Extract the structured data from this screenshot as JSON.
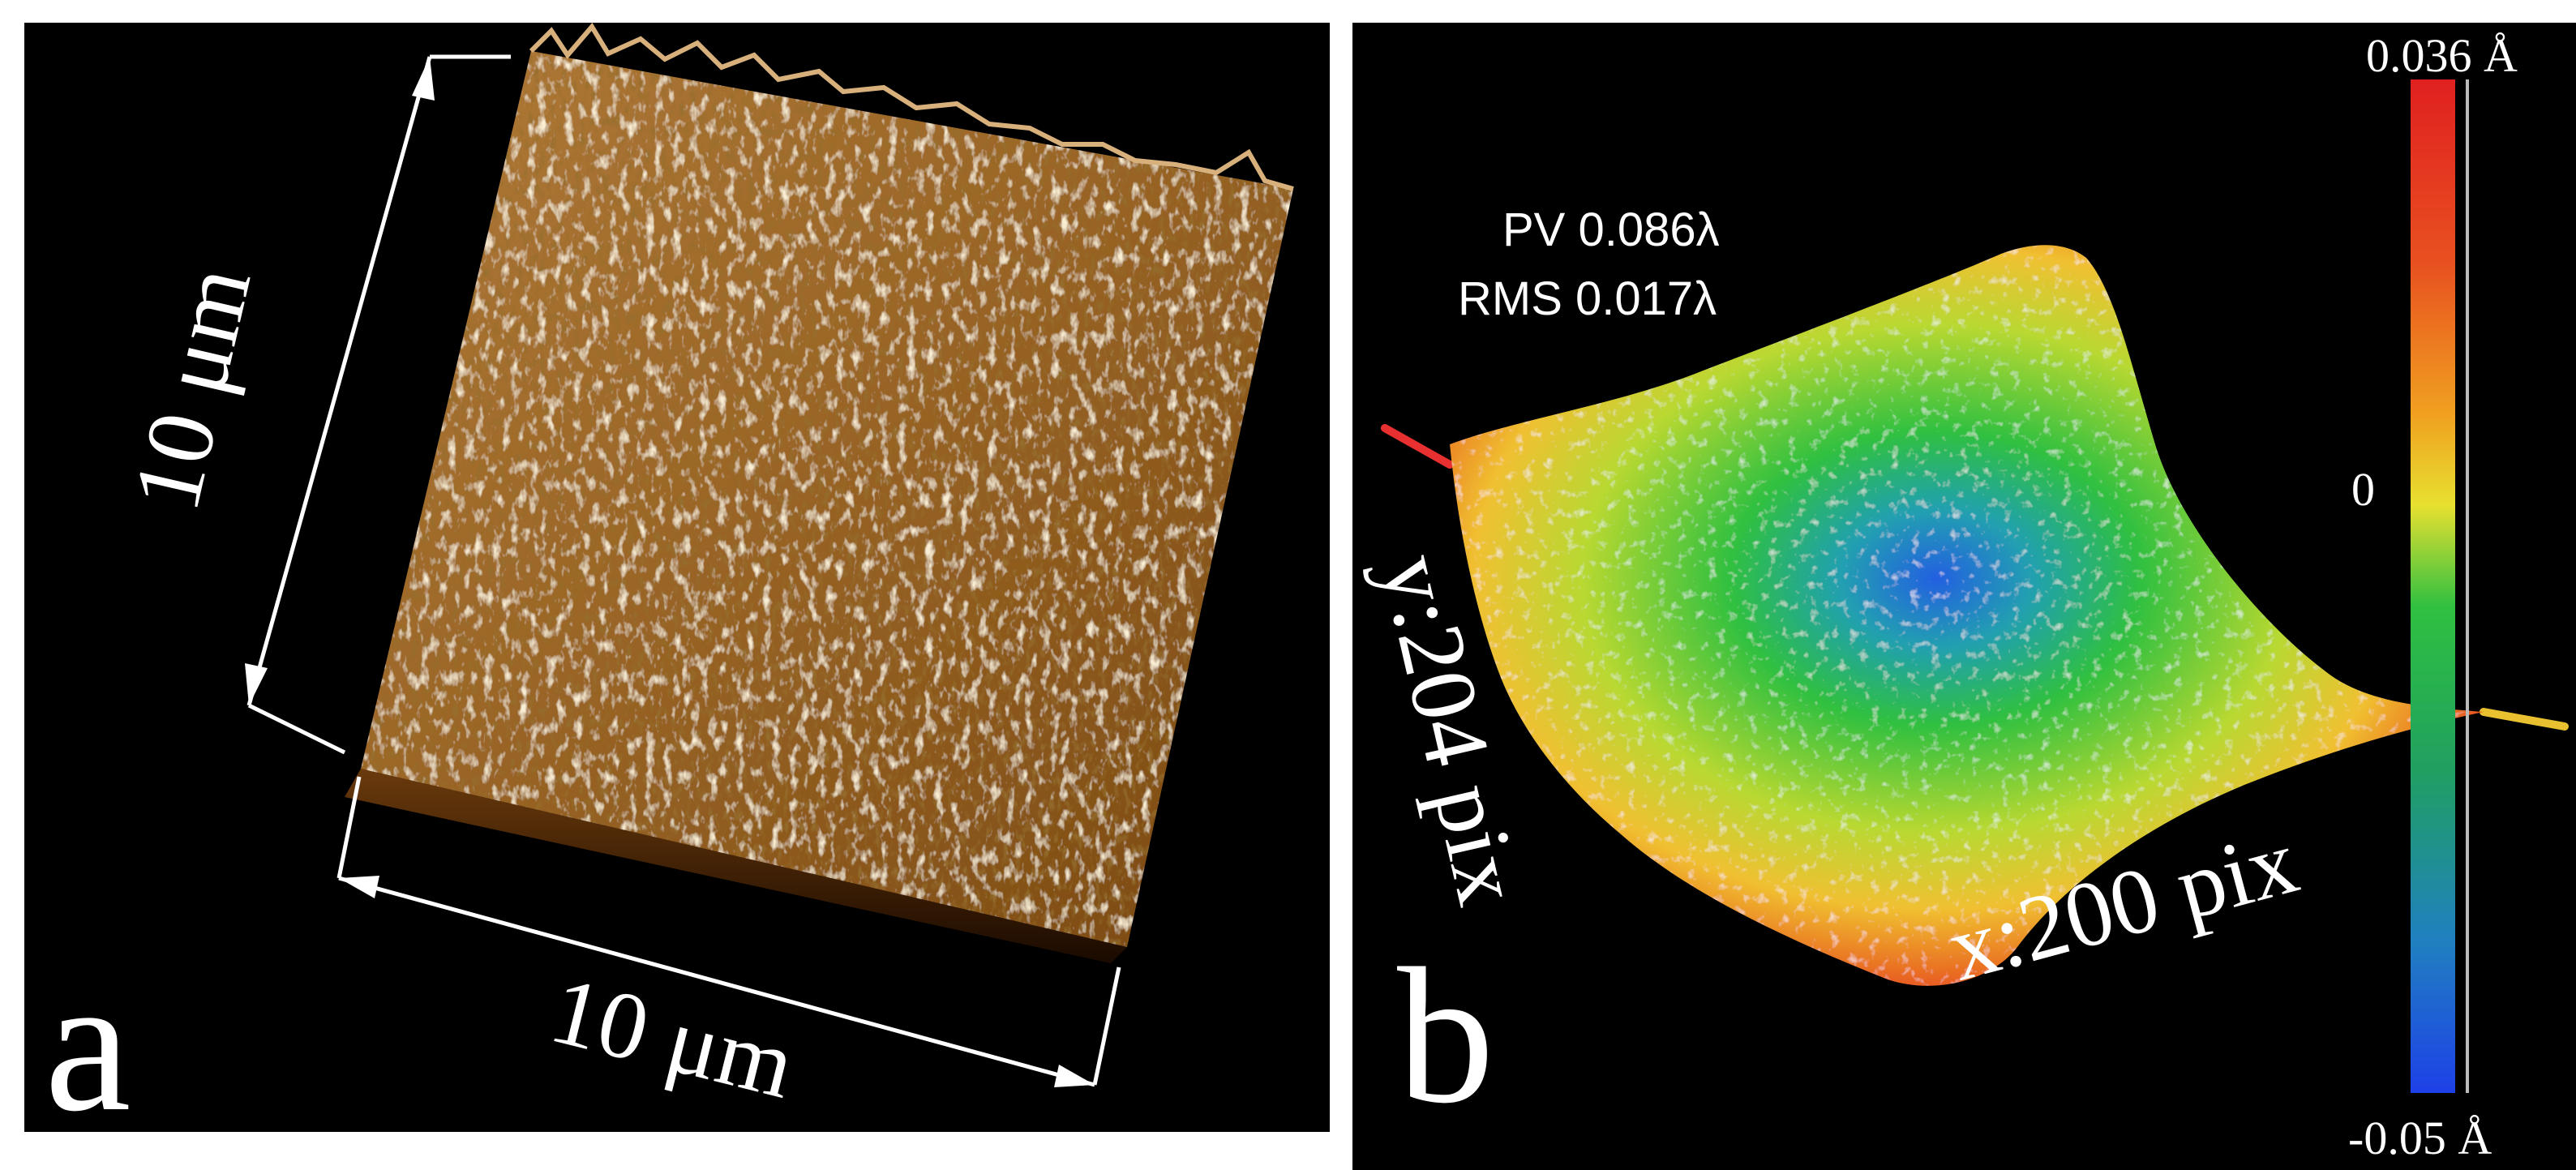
{
  "panel_a": {
    "letter": "a",
    "dim_vertical": "10 μm",
    "dim_horizontal": "10 μm",
    "colors": {
      "surface_base": "#8a5a1c",
      "surface_light": "#c8955a",
      "peak": "#f4e6cc"
    }
  },
  "panel_b": {
    "letter": "b",
    "pv": "PV 0.086λ",
    "rms": "RMS 0.017λ",
    "y_axis": "y:204 pix",
    "x_axis": "x:200 pix",
    "colorbar": {
      "max": "0.036 Å",
      "mid": "0",
      "min": "-0.05 Å"
    },
    "colors": {
      "high": "#e52320",
      "mid_high": "#f2d23a",
      "mid": "#32c23a",
      "low": "#1e5ae6"
    }
  }
}
